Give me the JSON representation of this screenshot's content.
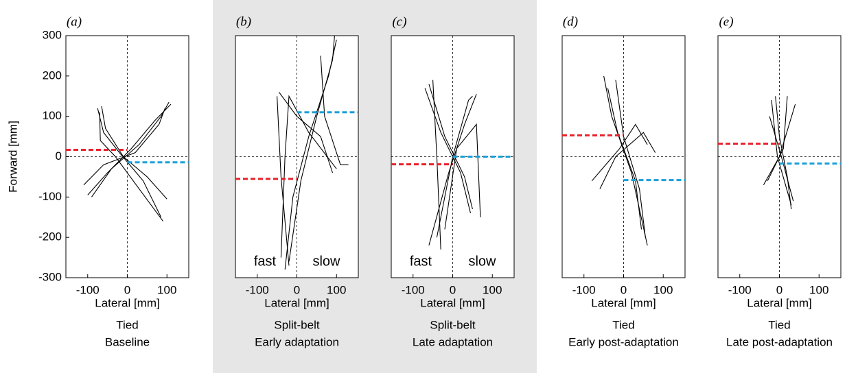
{
  "chart_data": [
    {
      "type": "line",
      "panel_label": "(a)",
      "xlabel": "Lateral [mm]",
      "ylabel": "Forward [mm]",
      "caption": [
        "Tied",
        "Baseline"
      ],
      "xlim": [
        -155,
        155
      ],
      "ylim": [
        -300,
        300
      ],
      "xticks": [
        -100,
        0,
        100
      ],
      "yticks": [
        300,
        200,
        100,
        0,
        -100,
        -200,
        -300
      ],
      "trace_color": "#000000",
      "fast_color": "#e8202a",
      "slow_color": "#1a9fd9",
      "fast_level": 17,
      "slow_level": -14,
      "traces": [
        {
          "x": [
            -75,
            -60,
            -20,
            40,
            85
          ],
          "y": [
            120,
            60,
            10,
            -60,
            -150
          ]
        },
        {
          "x": [
            -65,
            -55,
            -10,
            50,
            100
          ],
          "y": [
            125,
            70,
            0,
            -50,
            -105
          ]
        },
        {
          "x": [
            -70,
            -68,
            -30,
            30,
            90
          ],
          "y": [
            110,
            40,
            0,
            -80,
            -160
          ]
        },
        {
          "x": [
            -100,
            -50,
            10,
            70,
            110
          ],
          "y": [
            -95,
            -40,
            20,
            90,
            130
          ]
        },
        {
          "x": [
            -110,
            -60,
            20,
            80,
            95
          ],
          "y": [
            -70,
            -20,
            10,
            80,
            120
          ]
        },
        {
          "x": [
            -90,
            -40,
            30,
            85,
            105
          ],
          "y": [
            -100,
            -30,
            30,
            100,
            135
          ]
        }
      ]
    },
    {
      "type": "line",
      "panel_label": "(b)",
      "xlabel": "Lateral [mm]",
      "caption": [
        "Split-belt",
        "Early adaptation"
      ],
      "annotations": [
        "fast",
        "slow"
      ],
      "xlim": [
        -155,
        155
      ],
      "ylim": [
        -300,
        300
      ],
      "xticks": [
        -100,
        0,
        100
      ],
      "trace_color": "#000000",
      "fast_color": "#e8202a",
      "slow_color": "#1a9fd9",
      "fast_level": -55,
      "slow_level": 110,
      "traces": [
        {
          "x": [
            -30,
            -10,
            30,
            80,
            100
          ],
          "y": [
            -280,
            -100,
            50,
            200,
            290
          ]
        },
        {
          "x": [
            -40,
            -30,
            -20,
            30,
            100
          ],
          "y": [
            -250,
            0,
            150,
            60,
            -30
          ]
        },
        {
          "x": [
            -50,
            -40,
            -20
          ],
          "y": [
            150,
            -50,
            -270
          ]
        },
        {
          "x": [
            60,
            70,
            110,
            130
          ],
          "y": [
            250,
            100,
            -20,
            -20
          ]
        },
        {
          "x": [
            -45,
            0,
            60,
            90
          ],
          "y": [
            160,
            100,
            50,
            -40
          ]
        },
        {
          "x": [
            -20,
            10,
            50,
            90,
            95
          ],
          "y": [
            -260,
            -60,
            100,
            240,
            300
          ]
        }
      ]
    },
    {
      "type": "line",
      "panel_label": "(c)",
      "xlabel": "Lateral [mm]",
      "caption": [
        "Split-belt",
        "Late adaptation"
      ],
      "annotations": [
        "fast",
        "slow"
      ],
      "xlim": [
        -155,
        155
      ],
      "ylim": [
        -300,
        300
      ],
      "xticks": [
        -100,
        0,
        100
      ],
      "trace_color": "#000000",
      "fast_color": "#e8202a",
      "slow_color": "#1a9fd9",
      "fast_level": -19,
      "slow_level": 0,
      "traces": [
        {
          "x": [
            -50,
            -40,
            -30
          ],
          "y": [
            190,
            0,
            -230
          ]
        },
        {
          "x": [
            -60,
            -20,
            30,
            50
          ],
          "y": [
            180,
            50,
            -50,
            -130
          ]
        },
        {
          "x": [
            -40,
            0,
            40,
            50
          ],
          "y": [
            -200,
            0,
            140,
            150
          ]
        },
        {
          "x": [
            -20,
            10,
            60,
            70
          ],
          "y": [
            -180,
            20,
            80,
            -150
          ]
        },
        {
          "x": [
            -70,
            -30,
            20,
            45
          ],
          "y": [
            170,
            60,
            -40,
            -140
          ]
        },
        {
          "x": [
            -60,
            -10,
            30,
            60
          ],
          "y": [
            -220,
            -40,
            80,
            155
          ]
        }
      ]
    },
    {
      "type": "line",
      "panel_label": "(d)",
      "xlabel": "Lateral [mm]",
      "caption": [
        "Tied",
        "Early post-adaptation"
      ],
      "xlim": [
        -155,
        155
      ],
      "ylim": [
        -300,
        300
      ],
      "xticks": [
        -100,
        0,
        100
      ],
      "trace_color": "#000000",
      "fast_color": "#e8202a",
      "slow_color": "#1a9fd9",
      "fast_level": 53,
      "slow_level": -58,
      "traces": [
        {
          "x": [
            -50,
            -30,
            20,
            60
          ],
          "y": [
            200,
            100,
            -40,
            -220
          ]
        },
        {
          "x": [
            -20,
            0,
            40,
            55
          ],
          "y": [
            190,
            50,
            -80,
            -200
          ]
        },
        {
          "x": [
            -60,
            -20,
            50,
            80
          ],
          "y": [
            -80,
            0,
            60,
            10
          ]
        },
        {
          "x": [
            -80,
            -10,
            30,
            60
          ],
          "y": [
            -60,
            20,
            80,
            30
          ]
        },
        {
          "x": [
            -40,
            -15,
            30,
            45
          ],
          "y": [
            170,
            60,
            -60,
            -180
          ]
        }
      ]
    },
    {
      "type": "line",
      "panel_label": "(e)",
      "xlabel": "Lateral [mm]",
      "caption": [
        "Tied",
        "Late post-adaptation"
      ],
      "xlim": [
        -155,
        155
      ],
      "ylim": [
        -300,
        300
      ],
      "xticks": [
        -100,
        0,
        100
      ],
      "trace_color": "#000000",
      "fast_color": "#e8202a",
      "slow_color": "#1a9fd9",
      "fast_level": 32,
      "slow_level": -17,
      "traces": [
        {
          "x": [
            -10,
            0,
            20,
            30
          ],
          "y": [
            150,
            50,
            -50,
            -130
          ]
        },
        {
          "x": [
            -20,
            -5,
            30
          ],
          "y": [
            140,
            0,
            -120
          ]
        },
        {
          "x": [
            -40,
            0,
            40
          ],
          "y": [
            -70,
            0,
            130
          ]
        },
        {
          "x": [
            -30,
            10,
            20
          ],
          "y": [
            -60,
            20,
            150
          ]
        },
        {
          "x": [
            -25,
            5,
            35
          ],
          "y": [
            100,
            0,
            -110
          ]
        }
      ]
    }
  ]
}
